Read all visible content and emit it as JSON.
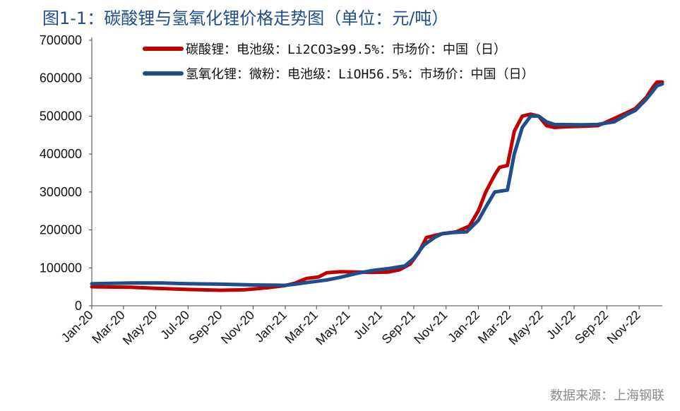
{
  "title": "图1-1：碳酸锂与氢氧化锂价格走势图（单位：元/吨）",
  "source": "数据来源：上海钢联",
  "chart_data": {
    "type": "line",
    "title": "图1-1：碳酸锂与氢氧化锂价格走势图（单位：元/吨）",
    "unit": "元/吨",
    "ylim": [
      0,
      700000
    ],
    "y_ticks": [
      0,
      100000,
      200000,
      300000,
      400000,
      500000,
      600000,
      700000
    ],
    "y_tick_labels": [
      "0",
      "100000",
      "200000",
      "300000",
      "400000",
      "500000",
      "600000",
      "700000"
    ],
    "x_tick_labels": [
      "Jan-20",
      "Mar-20",
      "May-20",
      "Jul-20",
      "Sep-20",
      "Nov-20",
      "Jan-21",
      "Mar-21",
      "May-21",
      "Jul-21",
      "Sep-21",
      "Nov-21",
      "Jan-22",
      "Mar-22",
      "May-22",
      "Jul-22",
      "Sep-22",
      "Nov-22"
    ],
    "x_ticks": [
      "2020-01",
      "2020-03",
      "2020-05",
      "2020-07",
      "2020-09",
      "2020-11",
      "2021-01",
      "2021-03",
      "2021-05",
      "2021-07",
      "2021-09",
      "2021-11",
      "2022-01",
      "2022-03",
      "2022-05",
      "2022-07",
      "2022-09",
      "2022-11"
    ],
    "xlim": [
      "2020-01",
      "2022-12-15"
    ],
    "grid": false,
    "legend_position": "top",
    "series": [
      {
        "name": "碳酸锂：电池级：Li2CO3≥99.5%：市场价：中国（日）",
        "color": "#c00000",
        "points": [
          [
            "2020-01-01",
            50000
          ],
          [
            "2020-03-15",
            49000
          ],
          [
            "2020-05-01",
            46000
          ],
          [
            "2020-07-01",
            43000
          ],
          [
            "2020-09-01",
            41000
          ],
          [
            "2020-10-15",
            42000
          ],
          [
            "2020-12-01",
            48000
          ],
          [
            "2020-12-31",
            53000
          ],
          [
            "2021-01-20",
            60000
          ],
          [
            "2021-02-10",
            72000
          ],
          [
            "2021-03-05",
            76000
          ],
          [
            "2021-03-20",
            87000
          ],
          [
            "2021-04-15",
            90000
          ],
          [
            "2021-05-15",
            89000
          ],
          [
            "2021-06-15",
            88000
          ],
          [
            "2021-07-15",
            89000
          ],
          [
            "2021-08-05",
            95000
          ],
          [
            "2021-08-25",
            110000
          ],
          [
            "2021-09-10",
            140000
          ],
          [
            "2021-09-25",
            180000
          ],
          [
            "2021-10-10",
            185000
          ],
          [
            "2021-10-25",
            190000
          ],
          [
            "2021-11-20",
            195000
          ],
          [
            "2021-12-15",
            210000
          ],
          [
            "2022-01-01",
            250000
          ],
          [
            "2022-01-15",
            300000
          ],
          [
            "2022-02-01",
            345000
          ],
          [
            "2022-02-10",
            365000
          ],
          [
            "2022-02-25",
            370000
          ],
          [
            "2022-03-10",
            460000
          ],
          [
            "2022-03-25",
            500000
          ],
          [
            "2022-04-10",
            505000
          ],
          [
            "2022-04-25",
            500000
          ],
          [
            "2022-05-10",
            475000
          ],
          [
            "2022-05-25",
            470000
          ],
          [
            "2022-06-15",
            472000
          ],
          [
            "2022-07-15",
            473000
          ],
          [
            "2022-08-15",
            475000
          ],
          [
            "2022-09-01",
            485000
          ],
          [
            "2022-09-20",
            497000
          ],
          [
            "2022-10-10",
            510000
          ],
          [
            "2022-10-25",
            520000
          ],
          [
            "2022-11-15",
            550000
          ],
          [
            "2022-11-28",
            578000
          ],
          [
            "2022-12-05",
            590000
          ],
          [
            "2022-12-15",
            590000
          ]
        ]
      },
      {
        "name": "氢氧化锂：微粉：电池级：LiOH56.5%：市场价：中国（日）",
        "color": "#1f4e8c",
        "points": [
          [
            "2020-01-01",
            58000
          ],
          [
            "2020-03-15",
            60000
          ],
          [
            "2020-05-15",
            60000
          ],
          [
            "2020-07-01",
            58000
          ],
          [
            "2020-09-01",
            57000
          ],
          [
            "2020-11-01",
            55000
          ],
          [
            "2020-12-31",
            54000
          ],
          [
            "2021-01-20",
            57000
          ],
          [
            "2021-02-15",
            62000
          ],
          [
            "2021-03-20",
            68000
          ],
          [
            "2021-04-15",
            75000
          ],
          [
            "2021-05-15",
            85000
          ],
          [
            "2021-06-15",
            93000
          ],
          [
            "2021-07-15",
            98000
          ],
          [
            "2021-08-15",
            105000
          ],
          [
            "2021-09-01",
            125000
          ],
          [
            "2021-09-20",
            160000
          ],
          [
            "2021-10-10",
            180000
          ],
          [
            "2021-10-25",
            190000
          ],
          [
            "2021-11-15",
            193000
          ],
          [
            "2021-12-10",
            195000
          ],
          [
            "2022-01-01",
            225000
          ],
          [
            "2022-01-15",
            260000
          ],
          [
            "2022-02-01",
            300000
          ],
          [
            "2022-02-25",
            305000
          ],
          [
            "2022-03-10",
            400000
          ],
          [
            "2022-03-25",
            470000
          ],
          [
            "2022-04-10",
            500000
          ],
          [
            "2022-04-25",
            500000
          ],
          [
            "2022-05-10",
            485000
          ],
          [
            "2022-05-25",
            478000
          ],
          [
            "2022-07-15",
            477000
          ],
          [
            "2022-08-15",
            478000
          ],
          [
            "2022-09-15",
            485000
          ],
          [
            "2022-10-10",
            505000
          ],
          [
            "2022-10-25",
            515000
          ],
          [
            "2022-11-15",
            545000
          ],
          [
            "2022-12-05",
            580000
          ],
          [
            "2022-12-15",
            585000
          ]
        ]
      }
    ]
  }
}
